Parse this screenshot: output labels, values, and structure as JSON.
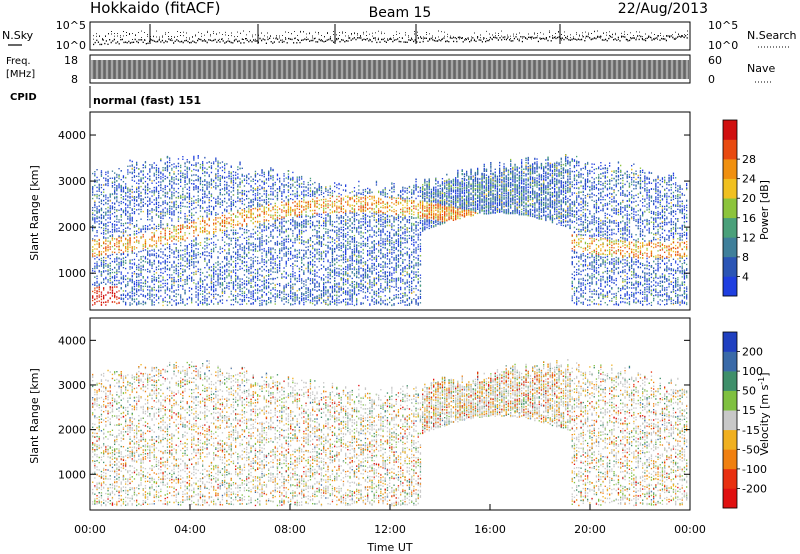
{
  "header": {
    "station": "Hokkaido (fitACF)",
    "beam": "Beam 15",
    "date": "22/Aug/2013"
  },
  "top_panels": {
    "nsky_label": "N.Sky",
    "nsky_ticks": [
      "10^5",
      "10^0"
    ],
    "nsearch_label": "N.Search",
    "nsearch_ticks": [
      "10^5",
      "10^0"
    ],
    "freq_label": "Freq.",
    "freq_unit": "[MHz]",
    "freq_ticks": [
      "18",
      "8"
    ],
    "nave_label": "Nave",
    "nave_ticks": [
      "60",
      "0"
    ],
    "cpid_label": "CPID",
    "cpid_value": "normal (fast) 151"
  },
  "chart_data": [
    {
      "type": "heatmap",
      "name": "power",
      "ylabel": "Slant Range [km]",
      "xlabel": "",
      "ylim": [
        200,
        4500
      ],
      "y_ticks": [
        "1000",
        "2000",
        "3000",
        "4000"
      ],
      "colorbar_label": "Power [dB]",
      "colorbar_ticks": [
        "4",
        "8",
        "12",
        "16",
        "20",
        "24",
        "28"
      ],
      "colorbar_colors": [
        "#1f3fe0",
        "#2b55b5",
        "#3f7f9a",
        "#4aa07a",
        "#8cc43c",
        "#f0c020",
        "#f09010",
        "#e84a10",
        "#d01010"
      ]
    },
    {
      "type": "heatmap",
      "name": "velocity",
      "ylabel": "Slant Range [km]",
      "xlabel": "Time UT",
      "ylim": [
        200,
        4500
      ],
      "y_ticks": [
        "1000",
        "2000",
        "3000",
        "4000"
      ],
      "x_ticks": [
        "00:00",
        "04:00",
        "08:00",
        "12:00",
        "16:00",
        "20:00",
        "00:00"
      ],
      "colorbar_label": "Velocity [m s^-1]",
      "colorbar_ticks": [
        "200",
        "100",
        "50",
        "15",
        "-15",
        "-50",
        "-100",
        "-200"
      ],
      "colorbar_colors": [
        "#2040c0",
        "#3a6aa8",
        "#3f8f6a",
        "#7fc040",
        "#c8c8c8",
        "#f0b020",
        "#f08010",
        "#e83010",
        "#e01010"
      ]
    }
  ]
}
